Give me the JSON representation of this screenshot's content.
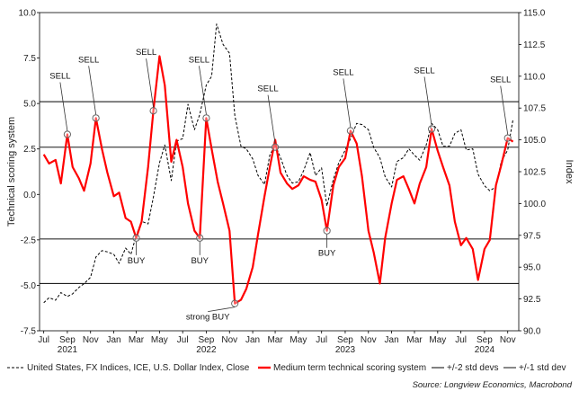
{
  "chart_data": {
    "type": "line",
    "ylabel": "Technical scoring system",
    "y2label": "Index",
    "ylim": [
      -7.5,
      10.0
    ],
    "y2lim": [
      90.0,
      115.0
    ],
    "yticks": [
      "10.0",
      "7.5",
      "5.0",
      "2.5",
      "0.0",
      "-2.5",
      "-5.0",
      "-7.5"
    ],
    "y2ticks": [
      "115.0",
      "112.5",
      "110.0",
      "107.5",
      "105.0",
      "102.5",
      "100.0",
      "97.5",
      "95.0",
      "92.5",
      "90.0"
    ],
    "xlim": [
      "2021-06-20",
      "2024-11-30"
    ],
    "month_ticks": [
      {
        "label": "Jul",
        "date": "2021-07-01"
      },
      {
        "label": "Sep",
        "date": "2021-09-01"
      },
      {
        "label": "Nov",
        "date": "2021-11-01"
      },
      {
        "label": "Jan",
        "date": "2022-01-01"
      },
      {
        "label": "Mar",
        "date": "2022-03-01"
      },
      {
        "label": "May",
        "date": "2022-05-01"
      },
      {
        "label": "Jul",
        "date": "2022-07-01"
      },
      {
        "label": "Sep",
        "date": "2022-09-01"
      },
      {
        "label": "Nov",
        "date": "2022-11-01"
      },
      {
        "label": "Jan",
        "date": "2023-01-01"
      },
      {
        "label": "Mar",
        "date": "2023-03-01"
      },
      {
        "label": "May",
        "date": "2023-05-01"
      },
      {
        "label": "Jul",
        "date": "2023-07-01"
      },
      {
        "label": "Sep",
        "date": "2023-09-01"
      },
      {
        "label": "Nov",
        "date": "2023-11-01"
      },
      {
        "label": "Jan",
        "date": "2024-01-01"
      },
      {
        "label": "Mar",
        "date": "2024-03-01"
      },
      {
        "label": "May",
        "date": "2024-05-01"
      },
      {
        "label": "Jul",
        "date": "2024-07-01"
      },
      {
        "label": "Sep",
        "date": "2024-09-01"
      },
      {
        "label": "Nov",
        "date": "2024-11-01"
      }
    ],
    "year_ticks": [
      {
        "label": "2021",
        "date": "2021-09-01"
      },
      {
        "label": "2022",
        "date": "2022-09-01"
      },
      {
        "label": "2023",
        "date": "2023-09-01"
      },
      {
        "label": "2024",
        "date": "2024-09-01"
      }
    ],
    "reference_lines": [
      {
        "series": "+/-2 std devs",
        "values": [
          5.1,
          -4.9
        ]
      },
      {
        "series": "+/-1 std dev",
        "values": [
          2.6,
          -2.45
        ]
      }
    ],
    "series": [
      {
        "name": "United States, FX Indices, ICE, U.S. Dollar Index, Close",
        "axis": "right",
        "color": "#000000",
        "style": "dashed",
        "points": [
          [
            "2021-07-01",
            92.2
          ],
          [
            "2021-07-15",
            92.6
          ],
          [
            "2021-08-01",
            92.4
          ],
          [
            "2021-08-15",
            93.0
          ],
          [
            "2021-09-01",
            92.7
          ],
          [
            "2021-09-15",
            92.9
          ],
          [
            "2021-10-01",
            93.4
          ],
          [
            "2021-10-15",
            93.7
          ],
          [
            "2021-11-01",
            94.2
          ],
          [
            "2021-11-15",
            95.8
          ],
          [
            "2021-12-01",
            96.3
          ],
          [
            "2021-12-15",
            96.2
          ],
          [
            "2022-01-01",
            96.0
          ],
          [
            "2022-01-15",
            95.3
          ],
          [
            "2022-02-01",
            96.5
          ],
          [
            "2022-02-15",
            96.0
          ],
          [
            "2022-03-01",
            97.5
          ],
          [
            "2022-03-15",
            98.6
          ],
          [
            "2022-04-01",
            98.4
          ],
          [
            "2022-04-15",
            100.5
          ],
          [
            "2022-05-01",
            103.2
          ],
          [
            "2022-05-15",
            104.6
          ],
          [
            "2022-06-01",
            101.8
          ],
          [
            "2022-06-15",
            104.9
          ],
          [
            "2022-07-01",
            105.1
          ],
          [
            "2022-07-15",
            107.8
          ],
          [
            "2022-08-01",
            105.8
          ],
          [
            "2022-08-15",
            107.0
          ],
          [
            "2022-09-01",
            109.3
          ],
          [
            "2022-09-15",
            110.0
          ],
          [
            "2022-09-28",
            114.1
          ],
          [
            "2022-10-15",
            112.5
          ],
          [
            "2022-11-01",
            111.8
          ],
          [
            "2022-11-15",
            106.9
          ],
          [
            "2022-12-01",
            104.5
          ],
          [
            "2022-12-15",
            104.3
          ],
          [
            "2023-01-01",
            103.5
          ],
          [
            "2023-01-15",
            102.2
          ],
          [
            "2023-02-01",
            101.5
          ],
          [
            "2023-02-15",
            103.8
          ],
          [
            "2023-03-01",
            104.6
          ],
          [
            "2023-03-15",
            103.6
          ],
          [
            "2023-04-01",
            102.2
          ],
          [
            "2023-04-15",
            101.6
          ],
          [
            "2023-05-01",
            101.7
          ],
          [
            "2023-05-15",
            102.6
          ],
          [
            "2023-06-01",
            104.0
          ],
          [
            "2023-06-15",
            102.2
          ],
          [
            "2023-07-01",
            102.8
          ],
          [
            "2023-07-15",
            99.8
          ],
          [
            "2023-08-01",
            101.9
          ],
          [
            "2023-08-15",
            103.2
          ],
          [
            "2023-09-01",
            104.2
          ],
          [
            "2023-09-15",
            105.1
          ],
          [
            "2023-10-01",
            106.3
          ],
          [
            "2023-10-15",
            106.2
          ],
          [
            "2023-11-01",
            105.8
          ],
          [
            "2023-11-15",
            104.4
          ],
          [
            "2023-12-01",
            103.6
          ],
          [
            "2023-12-15",
            102.1
          ],
          [
            "2024-01-01",
            101.3
          ],
          [
            "2024-01-15",
            103.3
          ],
          [
            "2024-02-01",
            103.6
          ],
          [
            "2024-02-15",
            104.3
          ],
          [
            "2024-03-01",
            103.8
          ],
          [
            "2024-03-15",
            103.4
          ],
          [
            "2024-04-01",
            104.6
          ],
          [
            "2024-04-15",
            106.3
          ],
          [
            "2024-05-01",
            105.8
          ],
          [
            "2024-05-15",
            104.5
          ],
          [
            "2024-06-01",
            104.5
          ],
          [
            "2024-06-15",
            105.5
          ],
          [
            "2024-07-01",
            105.8
          ],
          [
            "2024-07-15",
            104.2
          ],
          [
            "2024-08-01",
            104.3
          ],
          [
            "2024-08-15",
            102.3
          ],
          [
            "2024-09-01",
            101.4
          ],
          [
            "2024-09-15",
            101.0
          ],
          [
            "2024-10-01",
            101.3
          ],
          [
            "2024-10-15",
            103.3
          ],
          [
            "2024-11-01",
            104.2
          ],
          [
            "2024-11-15",
            106.6
          ]
        ]
      },
      {
        "name": "Medium term technical scoring system",
        "axis": "left",
        "color": "#ff0000",
        "style": "solid",
        "points": [
          [
            "2021-07-01",
            2.2
          ],
          [
            "2021-07-15",
            1.7
          ],
          [
            "2021-08-01",
            1.9
          ],
          [
            "2021-08-15",
            0.6
          ],
          [
            "2021-09-01",
            3.3
          ],
          [
            "2021-09-15",
            1.5
          ],
          [
            "2021-10-01",
            0.9
          ],
          [
            "2021-10-15",
            0.2
          ],
          [
            "2021-11-01",
            1.7
          ],
          [
            "2021-11-15",
            4.2
          ],
          [
            "2021-12-01",
            2.5
          ],
          [
            "2021-12-15",
            1.2
          ],
          [
            "2022-01-01",
            -0.1
          ],
          [
            "2022-01-15",
            0.1
          ],
          [
            "2022-02-01",
            -1.3
          ],
          [
            "2022-02-15",
            -1.5
          ],
          [
            "2022-03-01",
            -2.4
          ],
          [
            "2022-03-15",
            -1.5
          ],
          [
            "2022-04-01",
            1.5
          ],
          [
            "2022-04-15",
            4.6
          ],
          [
            "2022-05-01",
            7.6
          ],
          [
            "2022-05-15",
            6.0
          ],
          [
            "2022-06-01",
            1.8
          ],
          [
            "2022-06-15",
            3.0
          ],
          [
            "2022-07-01",
            1.5
          ],
          [
            "2022-07-15",
            -0.5
          ],
          [
            "2022-08-01",
            -2.0
          ],
          [
            "2022-08-15",
            -2.4
          ],
          [
            "2022-09-01",
            4.2
          ],
          [
            "2022-09-15",
            2.5
          ],
          [
            "2022-10-01",
            0.7
          ],
          [
            "2022-10-15",
            -0.5
          ],
          [
            "2022-11-01",
            -2.0
          ],
          [
            "2022-11-15",
            -6.0
          ],
          [
            "2022-12-01",
            -5.8
          ],
          [
            "2022-12-15",
            -5.2
          ],
          [
            "2023-01-01",
            -4.0
          ],
          [
            "2023-01-15",
            -2.2
          ],
          [
            "2023-02-01",
            -0.1
          ],
          [
            "2023-02-15",
            1.5
          ],
          [
            "2023-03-01",
            3.0
          ],
          [
            "2023-03-15",
            1.2
          ],
          [
            "2023-04-01",
            0.6
          ],
          [
            "2023-04-15",
            0.3
          ],
          [
            "2023-05-01",
            0.5
          ],
          [
            "2023-05-15",
            1.0
          ],
          [
            "2023-06-01",
            0.8
          ],
          [
            "2023-06-15",
            0.7
          ],
          [
            "2023-07-01",
            -0.3
          ],
          [
            "2023-07-15",
            -2.0
          ],
          [
            "2023-08-01",
            0.5
          ],
          [
            "2023-08-15",
            1.5
          ],
          [
            "2023-09-01",
            2.0
          ],
          [
            "2023-09-15",
            3.5
          ],
          [
            "2023-10-01",
            2.8
          ],
          [
            "2023-10-15",
            1.0
          ],
          [
            "2023-11-01",
            -2.0
          ],
          [
            "2023-11-15",
            -3.2
          ],
          [
            "2023-12-01",
            -4.9
          ],
          [
            "2023-12-15",
            -2.4
          ],
          [
            "2024-01-01",
            -0.5
          ],
          [
            "2024-01-15",
            0.8
          ],
          [
            "2024-02-01",
            1.0
          ],
          [
            "2024-02-15",
            0.3
          ],
          [
            "2024-03-01",
            -0.5
          ],
          [
            "2024-03-15",
            0.6
          ],
          [
            "2024-04-01",
            1.5
          ],
          [
            "2024-04-15",
            3.6
          ],
          [
            "2024-05-01",
            2.4
          ],
          [
            "2024-05-15",
            1.5
          ],
          [
            "2024-06-01",
            0.5
          ],
          [
            "2024-06-15",
            -1.5
          ],
          [
            "2024-07-01",
            -2.8
          ],
          [
            "2024-07-15",
            -2.4
          ],
          [
            "2024-08-01",
            -3.0
          ],
          [
            "2024-08-15",
            -4.7
          ],
          [
            "2024-09-01",
            -3.0
          ],
          [
            "2024-09-15",
            -2.5
          ],
          [
            "2024-10-01",
            0.5
          ],
          [
            "2024-10-15",
            1.6
          ],
          [
            "2024-11-01",
            3.1
          ],
          [
            "2024-11-15",
            2.9
          ]
        ]
      }
    ],
    "annotations": [
      {
        "text": "SELL",
        "date": "2021-09-01",
        "value": 3.3
      },
      {
        "text": "SELL",
        "date": "2021-11-15",
        "value": 4.2
      },
      {
        "text": "SELL",
        "date": "2022-04-15",
        "value": 4.6
      },
      {
        "text": "SELL",
        "date": "2022-09-01",
        "value": 4.2
      },
      {
        "text": "SELL",
        "date": "2023-03-01",
        "value": 2.6
      },
      {
        "text": "SELL",
        "date": "2023-09-15",
        "value": 3.5
      },
      {
        "text": "SELL",
        "date": "2024-04-15",
        "value": 3.6
      },
      {
        "text": "SELL",
        "date": "2024-11-01",
        "value": 3.1
      },
      {
        "text": "BUY",
        "date": "2022-03-01",
        "value": -2.4
      },
      {
        "text": "BUY",
        "date": "2022-08-15",
        "value": -2.4
      },
      {
        "text": "strong BUY",
        "date": "2022-11-15",
        "value": -6.0
      },
      {
        "text": "BUY",
        "date": "2023-07-15",
        "value": -2.0
      }
    ],
    "legend": {
      "placement": "bottom",
      "entries": [
        "United States, FX Indices, ICE, U.S. Dollar Index, Close",
        "Medium term technical scoring system",
        "+/-2 std devs",
        "+/-1 std dev"
      ]
    },
    "source": "Source: Longview Economics, Macrobond",
    "colors": {
      "score": "#ff0000",
      "dxy": "#000000",
      "std2": "#000000",
      "std1": "#555555",
      "frame": "#000000"
    }
  }
}
